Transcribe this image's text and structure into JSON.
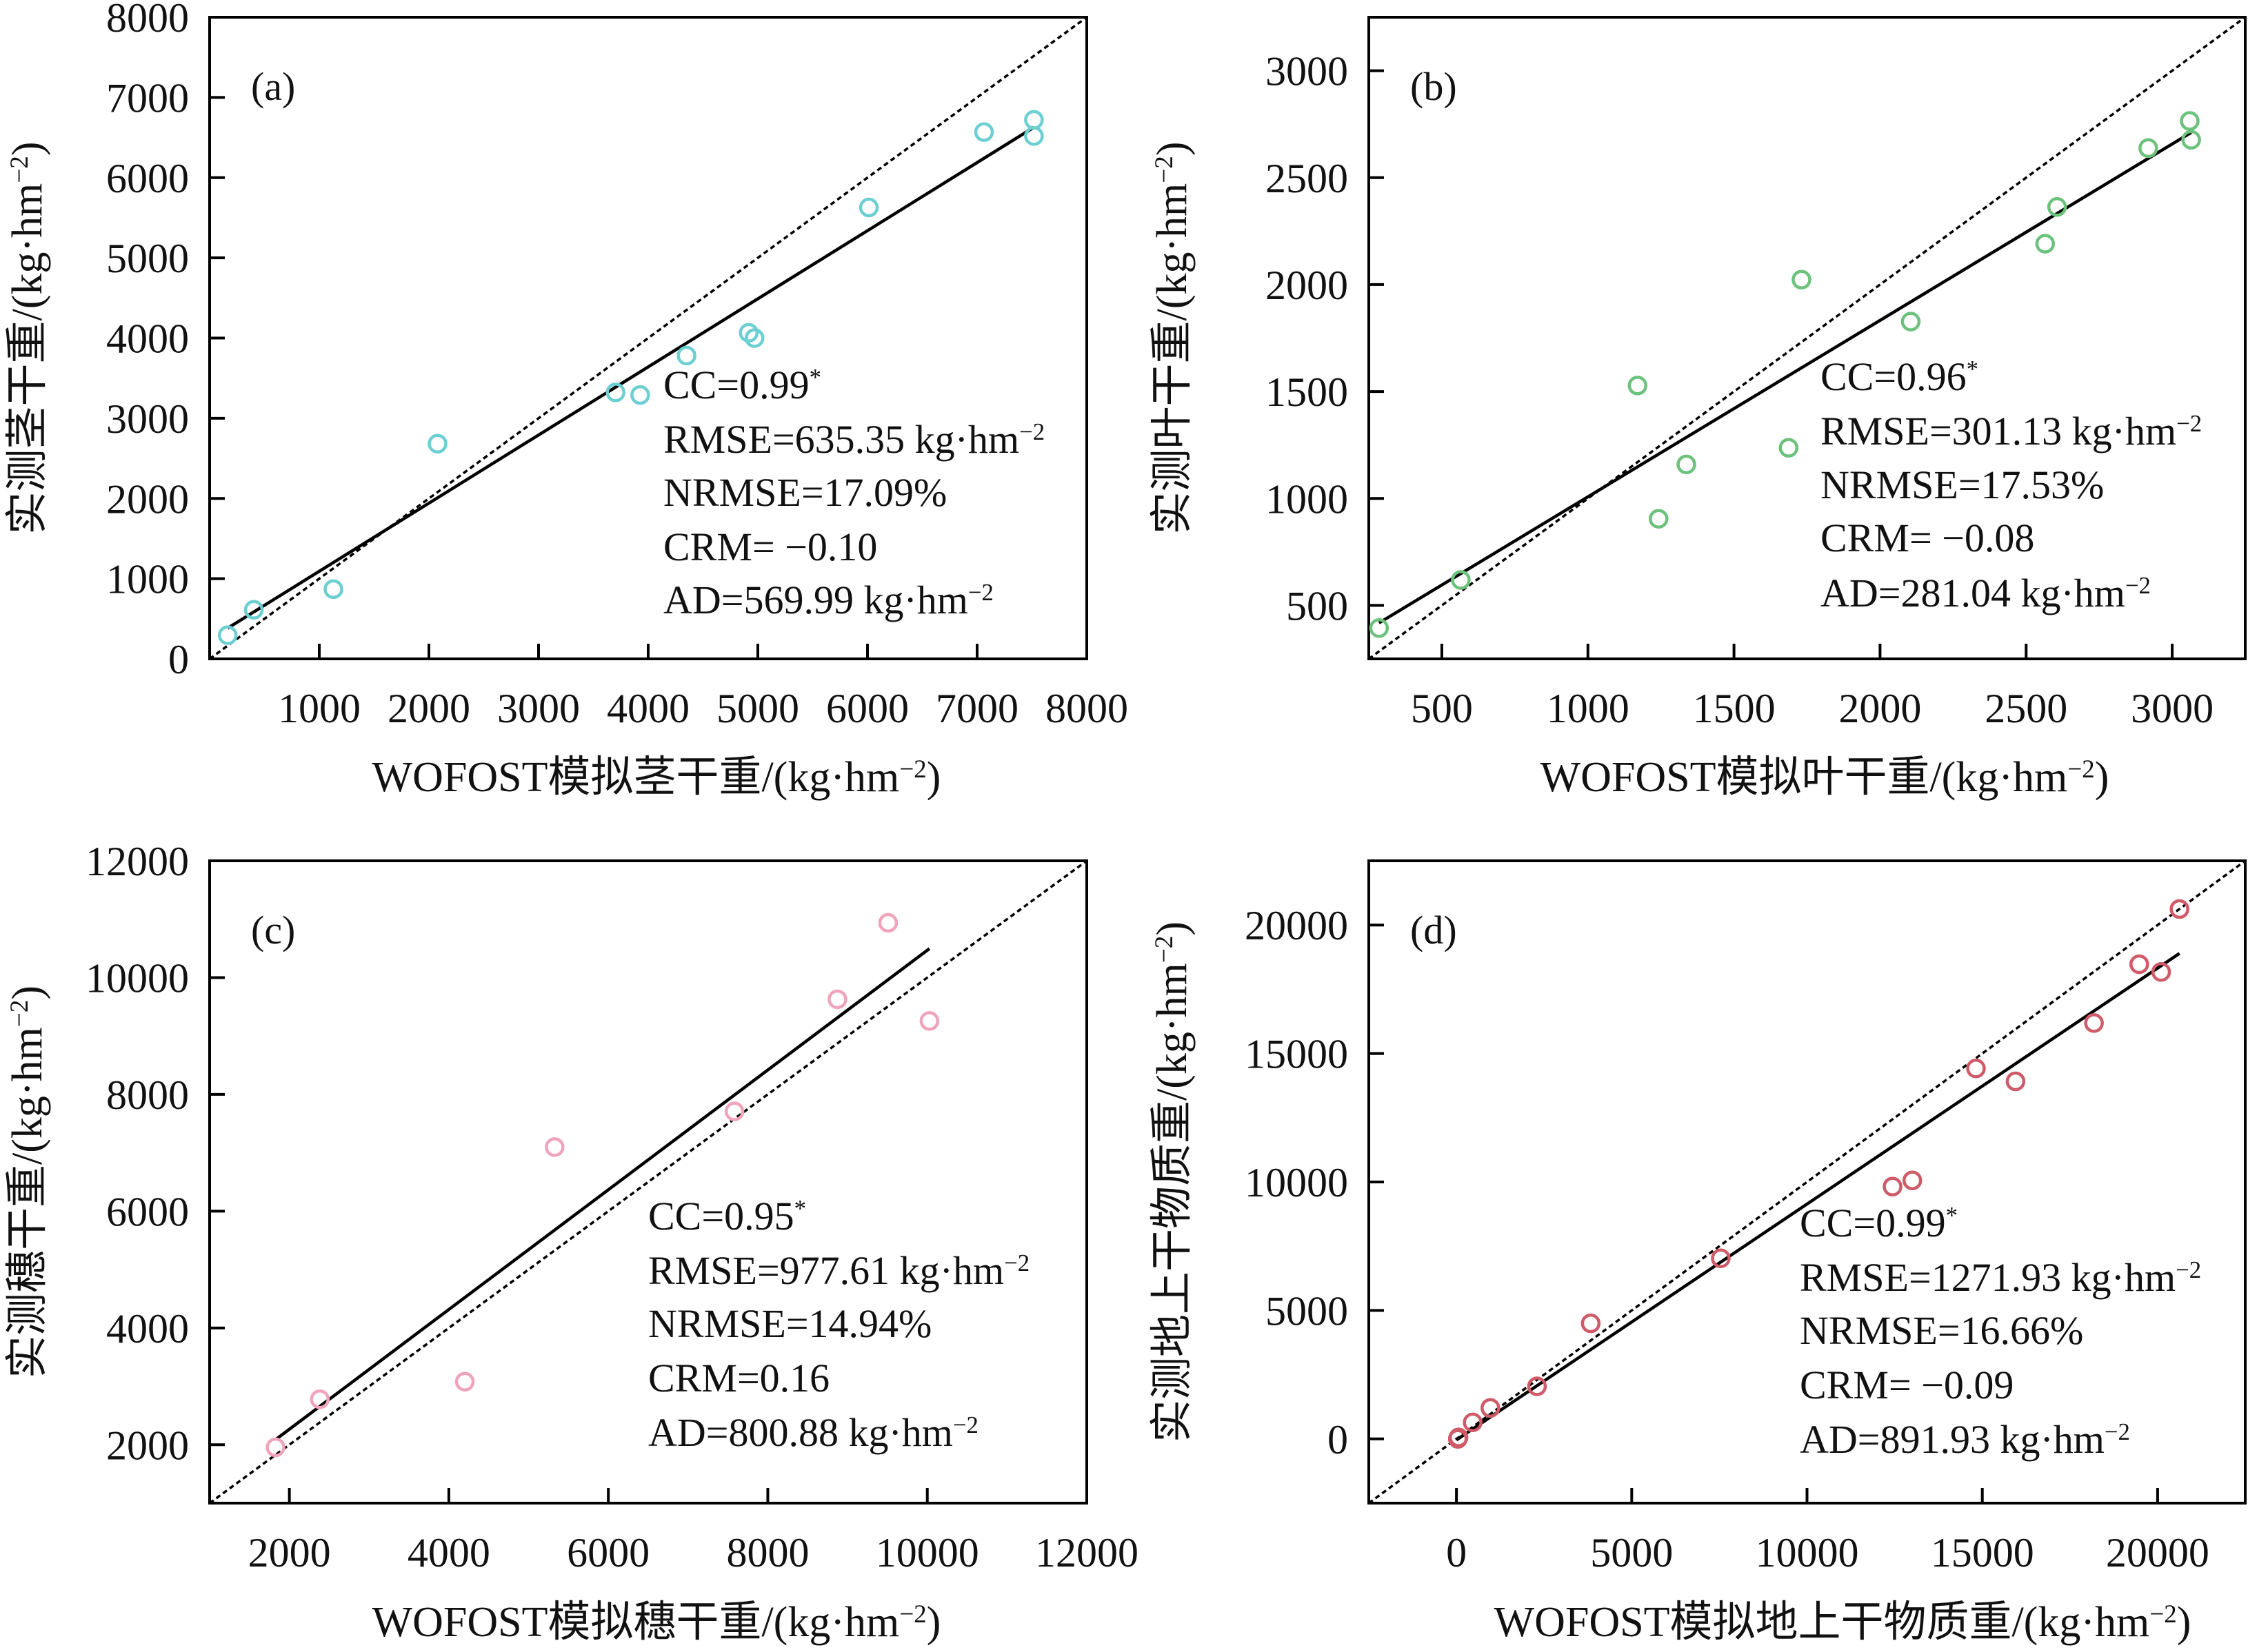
{
  "chart_data": [
    {
      "type": "scatter",
      "panel_label": "(a)",
      "color": "#6ccfd2",
      "xlabel": {
        "pre": "WOFOST模拟茎干重/(kg·hm",
        "sup": "−2",
        "post": ")"
      },
      "ylabel": {
        "pre": "实测茎干重/(kg·hm",
        "sup": "−2",
        "post": ")"
      },
      "xlim": [
        0,
        8000
      ],
      "ylim": [
        0,
        8000
      ],
      "xticks": [
        1000,
        2000,
        3000,
        4000,
        5000,
        6000,
        7000,
        8000
      ],
      "yticks": [
        0,
        1000,
        2000,
        3000,
        4000,
        5000,
        6000,
        7000,
        8000
      ],
      "points": [
        [
          165,
          295
        ],
        [
          403,
          612
        ],
        [
          1129,
          869
        ],
        [
          2079,
          2683
        ],
        [
          3703,
          3322
        ],
        [
          3927,
          3290
        ],
        [
          4350,
          3781
        ],
        [
          4917,
          4066
        ],
        [
          4970,
          4000
        ],
        [
          6013,
          5628
        ],
        [
          7063,
          6568
        ],
        [
          7518,
          6721
        ],
        [
          7518,
          6519
        ]
      ],
      "fit_line": {
        "x": [
          165,
          7518
        ],
        "y": [
          383,
          6628
        ]
      },
      "one_to_one": true,
      "stats": [
        {
          "text": "CC=0.99",
          "sup": "*"
        },
        {
          "text": "RMSE=635.35 kg·hm",
          "sup": "−2"
        },
        {
          "text": "NRMSE=17.09%",
          "sup": ""
        },
        {
          "text": "CRM= −0.10",
          "sup": ""
        },
        {
          "text": "AD=569.99 kg·hm",
          "sup": "−2"
        }
      ]
    },
    {
      "type": "scatter",
      "panel_label": "(b)",
      "color": "#6cc27c",
      "xlabel": {
        "pre": "WOFOST模拟叶干重/(kg·hm",
        "sup": "−2",
        "post": ")"
      },
      "ylabel": {
        "pre": "实测叶干重/(kg·hm",
        "sup": "−2",
        "post": ")"
      },
      "xlim": [
        250,
        3250
      ],
      "ylim": [
        250,
        3250
      ],
      "xticks": [
        500,
        1000,
        1500,
        2000,
        2500,
        3000
      ],
      "yticks": [
        500,
        1000,
        1500,
        2000,
        2500,
        3000
      ],
      "points": [
        [
          285,
          394
        ],
        [
          565,
          619
        ],
        [
          1170,
          1528
        ],
        [
          1242,
          905
        ],
        [
          1337,
          1159
        ],
        [
          1687,
          1237
        ],
        [
          1731,
          2023
        ],
        [
          2105,
          1827
        ],
        [
          2565,
          2191
        ],
        [
          2606,
          2363
        ],
        [
          2918,
          2638
        ],
        [
          3060,
          2765
        ],
        [
          3065,
          2677
        ]
      ],
      "fit_line": {
        "x": [
          285,
          3065
        ],
        "y": [
          418,
          2711
        ]
      },
      "one_to_one": true,
      "stats": [
        {
          "text": "CC=0.96",
          "sup": "*"
        },
        {
          "text": "RMSE=301.13 kg·hm",
          "sup": "−2"
        },
        {
          "text": "NRMSE=17.53%",
          "sup": ""
        },
        {
          "text": "CRM= −0.08",
          "sup": ""
        },
        {
          "text": "AD=281.04 kg·hm",
          "sup": "−2"
        }
      ]
    },
    {
      "type": "scatter",
      "panel_label": "(c)",
      "color": "#f0a3ba",
      "xlabel": {
        "pre": "WOFOST模拟穗干重/(kg·hm",
        "sup": "−2",
        "post": ")"
      },
      "ylabel": {
        "pre": "实测穗干重/(kg·hm",
        "sup": "−2",
        "post": ")"
      },
      "xlim": [
        1000,
        12000
      ],
      "ylim": [
        1000,
        12000
      ],
      "xticks": [
        2000,
        4000,
        6000,
        8000,
        10000,
        12000
      ],
      "yticks": [
        2000,
        4000,
        6000,
        8000,
        10000,
        12000
      ],
      "points": [
        [
          1827,
          1956
        ],
        [
          2382,
          2779
        ],
        [
          4200,
          3080
        ],
        [
          5327,
          7097
        ],
        [
          7582,
          7708
        ],
        [
          8873,
          9628
        ],
        [
          9509,
          10938
        ],
        [
          10027,
          9257
        ]
      ],
      "fit_line": {
        "x": [
          1827,
          10027
        ],
        "y": [
          2088,
          10496
        ]
      },
      "one_to_one": true,
      "stats": [
        {
          "text": "CC=0.95",
          "sup": "*"
        },
        {
          "text": "RMSE=977.61 kg·hm",
          "sup": "−2"
        },
        {
          "text": "NRMSE=14.94%",
          "sup": ""
        },
        {
          "text": "CRM=0.16",
          "sup": ""
        },
        {
          "text": "AD=800.88 kg·hm",
          "sup": "−2"
        }
      ]
    },
    {
      "type": "scatter",
      "panel_label": "(d)",
      "color": "#cf5a68",
      "xlabel": {
        "pre": "WOFOST模拟地上干物质重/(kg·hm",
        "sup": "−2",
        "post": ")"
      },
      "ylabel": {
        "pre": "实测地上干物质重/(kg·hm",
        "sup": "−2",
        "post": ")"
      },
      "xlim": [
        -2500,
        22500
      ],
      "ylim": [
        -2500,
        22500
      ],
      "xticks": [
        0,
        5000,
        10000,
        15000,
        20000
      ],
      "yticks": [
        0,
        5000,
        10000,
        15000,
        20000
      ],
      "points": [
        [
          40,
          0
        ],
        [
          60,
          60
        ],
        [
          464,
          643
        ],
        [
          968,
          1205
        ],
        [
          2298,
          2048
        ],
        [
          3831,
          4498
        ],
        [
          7540,
          7028
        ],
        [
          12440,
          9819
        ],
        [
          13004,
          10060
        ],
        [
          14819,
          14418
        ],
        [
          15948,
          13916
        ],
        [
          18185,
          16185
        ],
        [
          19476,
          18474
        ],
        [
          20101,
          18173
        ],
        [
          20625,
          20622
        ]
      ],
      "fit_line": {
        "x": [
          0,
          20625
        ],
        "y": [
          -40,
          18896
        ]
      },
      "one_to_one": true,
      "stats": [
        {
          "text": "CC=0.99",
          "sup": "*"
        },
        {
          "text": "RMSE=1271.93 kg·hm",
          "sup": "−2"
        },
        {
          "text": "NRMSE=16.66%",
          "sup": ""
        },
        {
          "text": "CRM= −0.09",
          "sup": ""
        },
        {
          "text": "AD=891.93 kg·hm",
          "sup": "−2"
        }
      ]
    }
  ]
}
